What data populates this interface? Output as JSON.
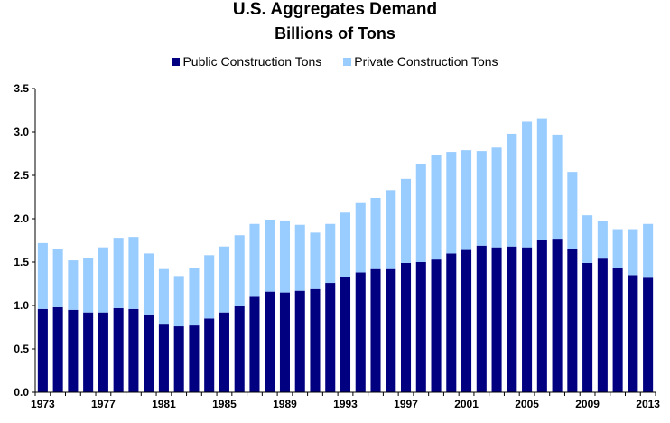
{
  "chart_data": {
    "type": "bar",
    "stacked": true,
    "title": "U.S. Aggregates Demand",
    "subtitle": "Billions of Tons",
    "xlabel": "",
    "ylabel": "",
    "ylim": [
      0,
      3.5
    ],
    "yticks": [
      "0.0",
      "0.5",
      "1.0",
      "1.5",
      "2.0",
      "2.5",
      "3.0",
      "3.5"
    ],
    "xtick_labels": [
      "1973",
      "1977",
      "1981",
      "1985",
      "1989",
      "1993",
      "1997",
      "2001",
      "2005",
      "2009",
      "2013"
    ],
    "legend_position": "top",
    "categories": [
      1973,
      1974,
      1975,
      1976,
      1977,
      1978,
      1979,
      1980,
      1981,
      1982,
      1983,
      1984,
      1985,
      1986,
      1987,
      1988,
      1989,
      1990,
      1991,
      1992,
      1993,
      1994,
      1995,
      1996,
      1997,
      1998,
      1999,
      2000,
      2001,
      2002,
      2003,
      2004,
      2005,
      2006,
      2007,
      2008,
      2009,
      2010,
      2011,
      2012,
      2013
    ],
    "series": [
      {
        "name": "Public Construction Tons",
        "color": "#000080",
        "values": [
          0.96,
          0.98,
          0.95,
          0.92,
          0.92,
          0.97,
          0.96,
          0.89,
          0.78,
          0.76,
          0.77,
          0.85,
          0.92,
          0.99,
          1.1,
          1.16,
          1.15,
          1.17,
          1.19,
          1.26,
          1.33,
          1.38,
          1.42,
          1.42,
          1.49,
          1.5,
          1.53,
          1.6,
          1.64,
          1.69,
          1.67,
          1.68,
          1.67,
          1.75,
          1.77,
          1.65,
          1.49,
          1.54,
          1.43,
          1.35,
          1.32
        ]
      },
      {
        "name": "Private Construction Tons",
        "color": "#99CCFF",
        "values": [
          0.76,
          0.67,
          0.57,
          0.63,
          0.75,
          0.81,
          0.83,
          0.71,
          0.64,
          0.58,
          0.66,
          0.73,
          0.76,
          0.82,
          0.84,
          0.83,
          0.83,
          0.76,
          0.65,
          0.68,
          0.74,
          0.8,
          0.82,
          0.91,
          0.97,
          1.13,
          1.2,
          1.17,
          1.15,
          1.09,
          1.15,
          1.3,
          1.45,
          1.4,
          1.2,
          0.89,
          0.55,
          0.43,
          0.45,
          0.53,
          0.62
        ]
      }
    ]
  }
}
